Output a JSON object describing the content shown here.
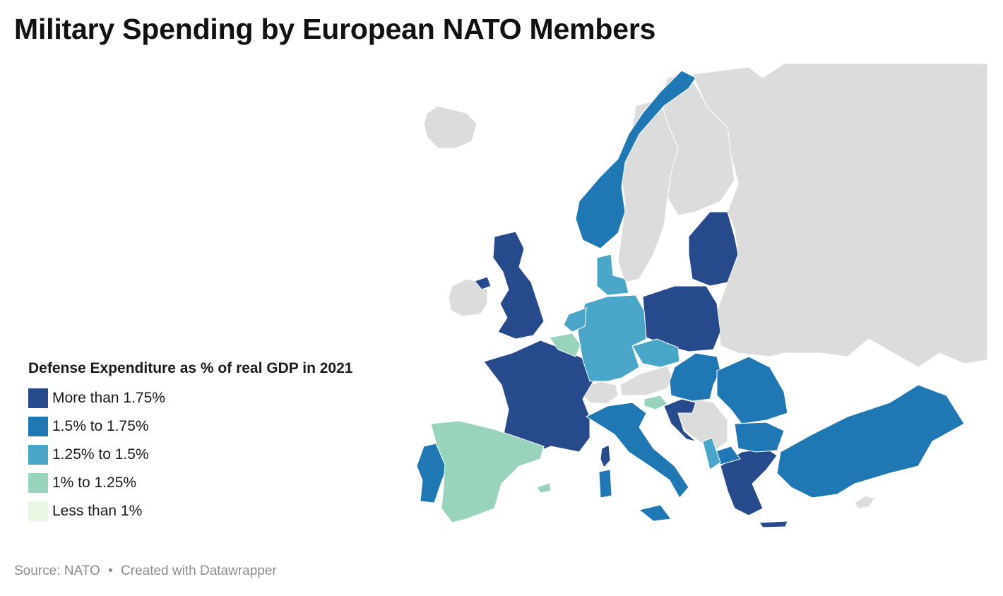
{
  "title": "Military Spending by European NATO Members",
  "legend": {
    "title": "Defense Expenditure as % of real GDP in 2021",
    "items": [
      {
        "label": "More than 1.75%",
        "color": "#264a8c"
      },
      {
        "label": "1.5% to 1.75%",
        "color": "#1f78b4"
      },
      {
        "label": "1.25% to 1.5%",
        "color": "#4aa6c9"
      },
      {
        "label": "1% to 1.25%",
        "color": "#97d4bb"
      },
      {
        "label": "Less than 1%",
        "color": "#eaf7e2"
      }
    ]
  },
  "map_colors": {
    "non_member": "#dcdcdc",
    "border": "#ffffff"
  },
  "footer": {
    "source": "Source: NATO",
    "separator": "•",
    "credit": "Created with Datawrapper"
  }
}
